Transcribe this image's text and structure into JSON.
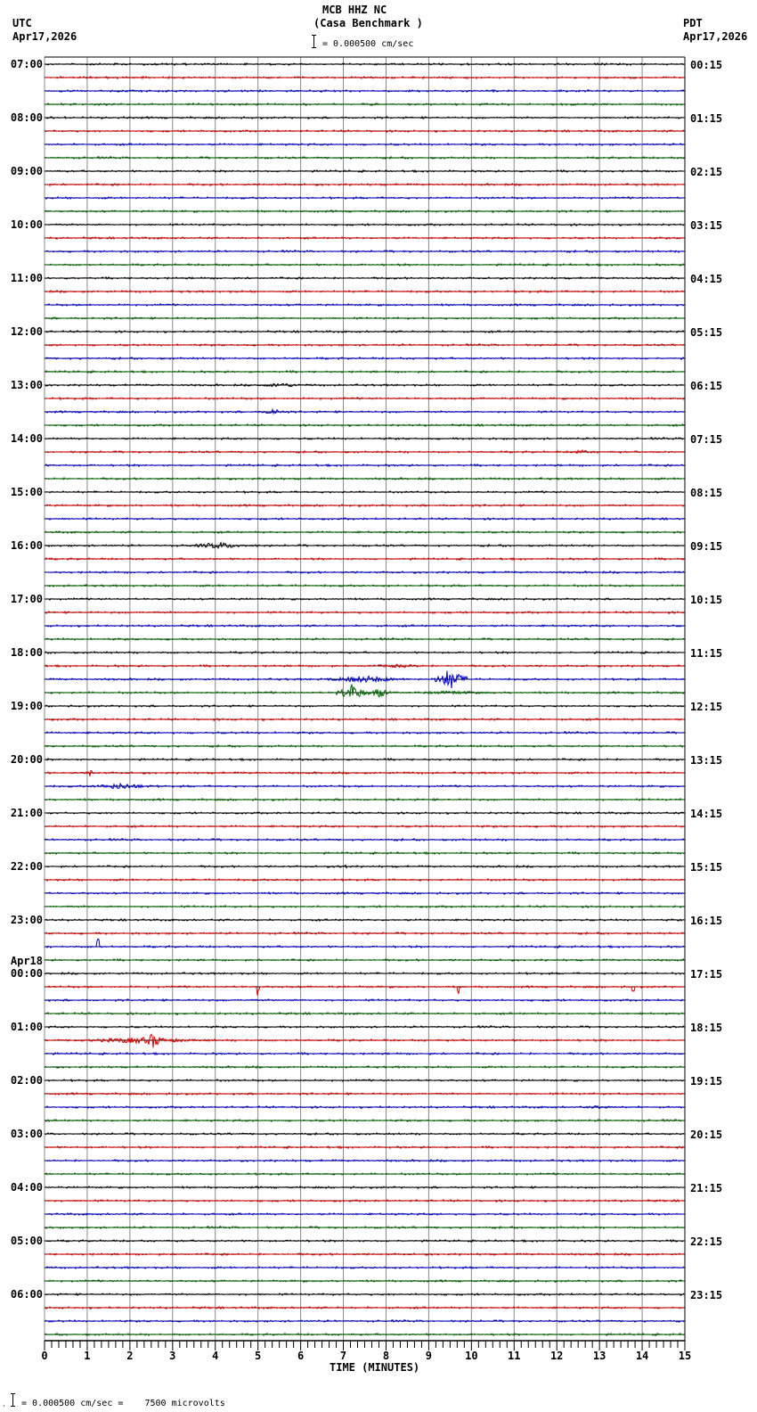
{
  "header": {
    "title": "MCB HHZ NC",
    "subtitle": "(Casa Benchmark )",
    "scale_text": "= 0.000500 cm/sec",
    "left_tz": "UTC",
    "left_date": "Apr17,2026",
    "right_tz": "PDT",
    "right_date": "Apr17,2026"
  },
  "footer": {
    "caption": "= 0.000500 cm/sec =    7500 microvolts"
  },
  "chart_data": {
    "type": "line",
    "subtype": "helicorder-seismogram",
    "title": "MCB HHZ NC (Casa Benchmark )",
    "xlabel": "TIME (MINUTES)",
    "ylabel": "",
    "x_ticks": [
      "0",
      "1",
      "2",
      "3",
      "4",
      "5",
      "6",
      "7",
      "8",
      "9",
      "10",
      "11",
      "12",
      "13",
      "14",
      "15"
    ],
    "xlim": [
      0,
      15
    ],
    "grid": true,
    "rows_per_hour": 4,
    "row_minutes": 15,
    "trace_colors": [
      "#000000",
      "#dd0000",
      "#0000cc",
      "#006600"
    ],
    "gridline_color": "#888888",
    "left_labels": [
      "07:00",
      "08:00",
      "09:00",
      "10:00",
      "11:00",
      "12:00",
      "13:00",
      "14:00",
      "15:00",
      "16:00",
      "17:00",
      "18:00",
      "19:00",
      "20:00",
      "21:00",
      "22:00",
      "23:00",
      "00:00",
      "01:00",
      "02:00",
      "03:00",
      "04:00",
      "05:00",
      "06:00"
    ],
    "right_labels": [
      "00:15",
      "01:15",
      "02:15",
      "03:15",
      "04:15",
      "05:15",
      "06:15",
      "07:15",
      "08:15",
      "09:15",
      "10:15",
      "11:15",
      "12:15",
      "13:15",
      "14:15",
      "15:15",
      "16:15",
      "17:15",
      "18:15",
      "19:15",
      "20:15",
      "21:15",
      "22:15",
      "23:15"
    ],
    "date_change": {
      "label": "Apr18",
      "hour_index": 17
    },
    "scale": "0.000500 cm/sec = 7500 microvolts",
    "events": [
      {
        "row": 24,
        "start_min": 4.8,
        "end_min": 6.3,
        "amp": 2.5
      },
      {
        "row": 26,
        "start_min": 5.0,
        "end_min": 5.7,
        "amp": 4
      },
      {
        "row": 29,
        "start_min": 12.2,
        "end_min": 12.9,
        "amp": 2.5
      },
      {
        "row": 36,
        "start_min": 3.2,
        "end_min": 5.0,
        "amp": 3.5
      },
      {
        "row": 45,
        "start_min": 7.4,
        "end_min": 9.2,
        "amp": 2
      },
      {
        "row": 46,
        "start_min": 6.4,
        "end_min": 8.6,
        "amp": 4
      },
      {
        "row": 46,
        "start_min": 9.1,
        "end_min": 9.9,
        "amp": 12
      },
      {
        "row": 47,
        "start_min": 6.8,
        "end_min": 7.6,
        "amp": 10
      },
      {
        "row": 47,
        "start_min": 7.6,
        "end_min": 8.1,
        "amp": 6
      },
      {
        "row": 47,
        "start_min": 8.1,
        "end_min": 11.0,
        "amp": 2
      },
      {
        "row": 53,
        "start_min": 1.0,
        "end_min": 1.15,
        "amp": 5
      },
      {
        "row": 54,
        "start_min": 0.9,
        "end_min": 2.7,
        "amp": 3.5
      },
      {
        "row": 60,
        "start_min": 6.8,
        "end_min": 7.2,
        "amp": 2.5
      },
      {
        "row": 66,
        "start_min": 1.22,
        "end_min": 1.28,
        "amp": 10,
        "spike": "up"
      },
      {
        "row": 69,
        "start_min": 4.98,
        "end_min": 5.04,
        "amp": 12,
        "spike": "both"
      },
      {
        "row": 69,
        "start_min": 9.66,
        "end_min": 9.72,
        "amp": 8,
        "spike": "down"
      },
      {
        "row": 69,
        "start_min": 13.76,
        "end_min": 13.82,
        "amp": 5,
        "spike": "down"
      },
      {
        "row": 73,
        "start_min": 0.5,
        "end_min": 4.0,
        "amp": 3.5
      },
      {
        "row": 73,
        "start_min": 2.3,
        "end_min": 2.8,
        "amp": 9
      },
      {
        "row": 78,
        "start_min": 12.4,
        "end_min": 13.6,
        "amp": 1.8
      }
    ]
  }
}
